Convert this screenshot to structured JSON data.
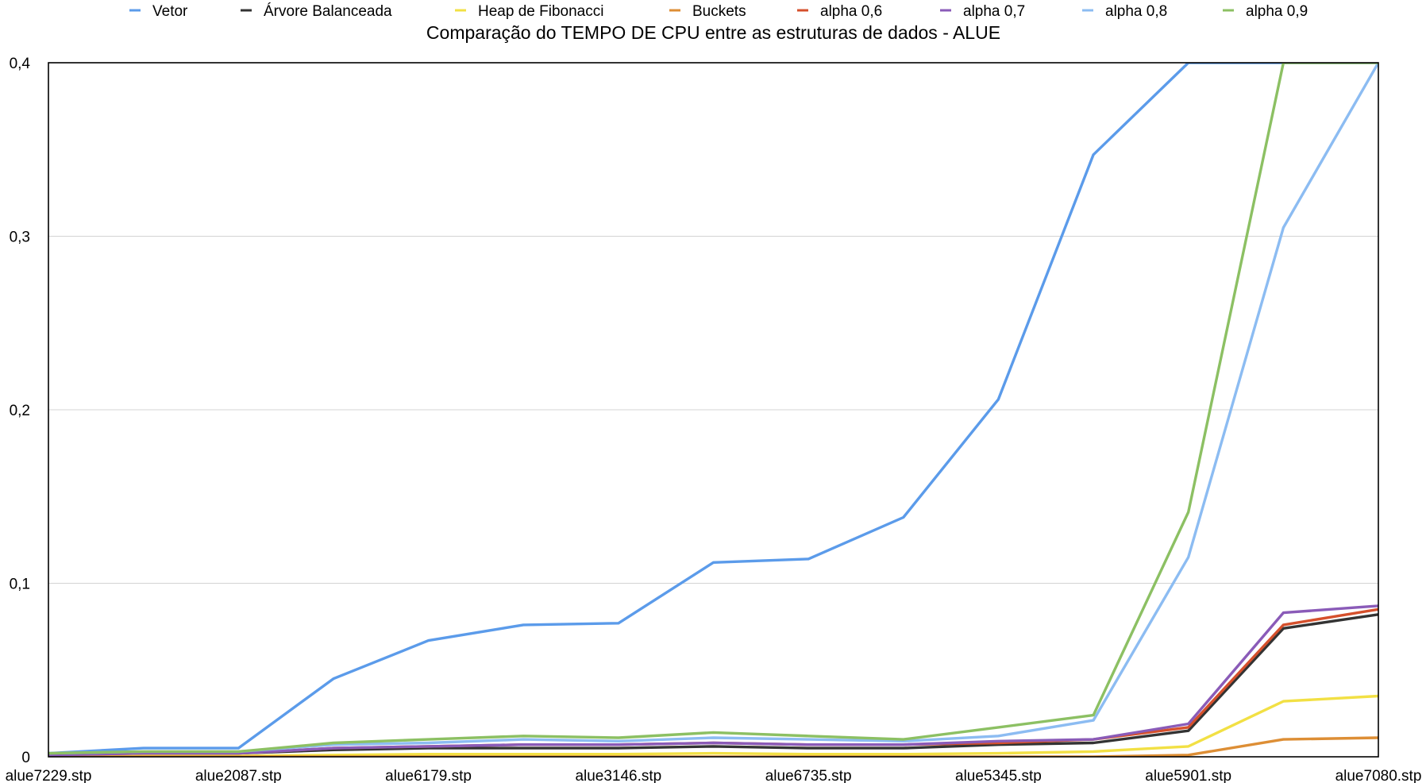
{
  "chart_data": {
    "type": "line",
    "title": "Comparação do TEMPO DE CPU entre as estruturas de dados - ALUE",
    "xlabel": "",
    "ylabel": "",
    "ylim": [
      0,
      0.4
    ],
    "yticks": [
      {
        "value": 0,
        "label": "0"
      },
      {
        "value": 0.1,
        "label": "0,1"
      },
      {
        "value": 0.2,
        "label": "0,2"
      },
      {
        "value": 0.3,
        "label": "0,3"
      },
      {
        "value": 0.4,
        "label": "0,4"
      }
    ],
    "grid": true,
    "legend_position": "top",
    "x_labels": [
      {
        "index": 0,
        "label": "alue7229.stp"
      },
      {
        "index": 2,
        "label": "alue2087.stp"
      },
      {
        "index": 4,
        "label": "alue6179.stp"
      },
      {
        "index": 6,
        "label": "alue3146.stp"
      },
      {
        "index": 8,
        "label": "alue6735.stp"
      },
      {
        "index": 10,
        "label": "alue5345.stp"
      },
      {
        "index": 12,
        "label": "alue5901.stp"
      },
      {
        "index": 14,
        "label": "alue7080.stp"
      }
    ],
    "point_count": 15,
    "series": [
      {
        "name": "Vetor",
        "color": "#5b9bea",
        "values": [
          0.002,
          0.005,
          0.005,
          0.045,
          0.067,
          0.076,
          0.077,
          0.112,
          0.114,
          0.138,
          0.206,
          0.347,
          0.4,
          0.4,
          0.4
        ]
      },
      {
        "name": "Árvore Balanceada",
        "color": "#333333",
        "values": [
          0.001,
          0.002,
          0.002,
          0.004,
          0.005,
          0.005,
          0.005,
          0.006,
          0.005,
          0.005,
          0.007,
          0.008,
          0.015,
          0.074,
          0.082
        ]
      },
      {
        "name": "Heap de Fibonacci",
        "color": "#f2e044",
        "values": [
          0.0,
          0.0005,
          0.0005,
          0.001,
          0.0015,
          0.0015,
          0.0015,
          0.002,
          0.0015,
          0.0015,
          0.002,
          0.003,
          0.006,
          0.032,
          0.035
        ]
      },
      {
        "name": "Buckets",
        "color": "#dd8e35",
        "values": [
          0.0,
          0.0,
          0.0,
          0.0,
          0.0,
          0.0,
          0.0,
          0.0,
          0.0,
          0.0,
          0.0,
          0.0,
          0.001,
          0.01,
          0.011
        ]
      },
      {
        "name": "alpha 0,6",
        "color": "#d5502c",
        "values": [
          0.001,
          0.002,
          0.002,
          0.005,
          0.006,
          0.007,
          0.007,
          0.008,
          0.007,
          0.007,
          0.008,
          0.01,
          0.017,
          0.076,
          0.085
        ]
      },
      {
        "name": "alpha 0,7",
        "color": "#8a5bb8",
        "values": [
          0.001,
          0.002,
          0.002,
          0.005,
          0.006,
          0.007,
          0.007,
          0.008,
          0.007,
          0.007,
          0.009,
          0.01,
          0.019,
          0.083,
          0.087
        ]
      },
      {
        "name": "alpha 0,8",
        "color": "#8cbcf2",
        "values": [
          0.002,
          0.003,
          0.003,
          0.007,
          0.008,
          0.01,
          0.009,
          0.011,
          0.01,
          0.009,
          0.012,
          0.021,
          0.115,
          0.305,
          0.4
        ]
      },
      {
        "name": "alpha 0,9",
        "color": "#8cc063",
        "values": [
          0.002,
          0.003,
          0.003,
          0.008,
          0.01,
          0.012,
          0.011,
          0.014,
          0.012,
          0.01,
          0.017,
          0.024,
          0.141,
          0.4,
          0.4
        ]
      }
    ]
  }
}
